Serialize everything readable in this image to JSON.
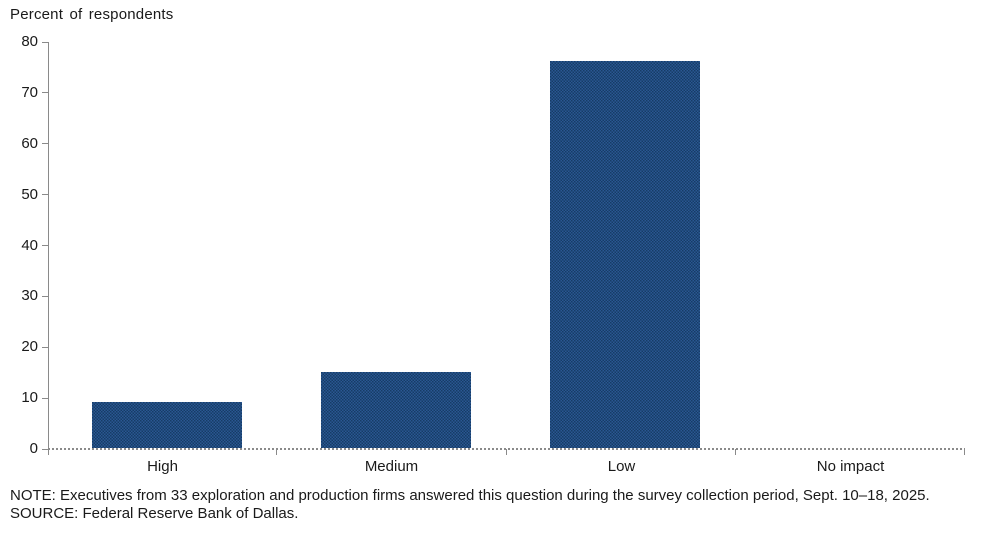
{
  "header": {
    "title": "Percent of respondents"
  },
  "chart_data": {
    "type": "bar",
    "categories": [
      "High",
      "Medium",
      "Low",
      "No impact"
    ],
    "values": [
      9,
      15,
      76,
      0
    ],
    "title": "Percent of respondents",
    "xlabel": "",
    "ylabel": "Percent of respondents",
    "ylim": [
      0,
      80
    ],
    "ytick_interval": 10,
    "yticks": [
      0,
      10,
      20,
      30,
      40,
      50,
      60,
      70,
      80
    ],
    "grid": false,
    "legend": "none",
    "bar_color": "#1e4b7d",
    "axis_color": "#8a8a8a",
    "text_color": "#1a1a1a"
  },
  "footer": {
    "note": "NOTE: Executives from 33 exploration and production firms answered this question during the survey collection period, Sept. 10–18, 2025.",
    "source": "SOURCE: Federal Reserve Bank of Dallas."
  }
}
